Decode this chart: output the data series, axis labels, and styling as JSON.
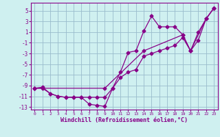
{
  "xlabel": "Windchill (Refroidissement éolien,°C)",
  "bg_color": "#cff0f0",
  "grid_color": "#99bbcc",
  "line_color": "#880088",
  "xlim": [
    -0.5,
    23.5
  ],
  "ylim": [
    -13.5,
    6.5
  ],
  "xticks": [
    0,
    1,
    2,
    3,
    4,
    5,
    6,
    7,
    8,
    9,
    10,
    11,
    12,
    13,
    14,
    15,
    16,
    17,
    18,
    19,
    20,
    21,
    22,
    23
  ],
  "yticks": [
    -13,
    -11,
    -9,
    -7,
    -5,
    -3,
    -1,
    1,
    3,
    5
  ],
  "line1_x": [
    0,
    1,
    2,
    3,
    4,
    5,
    6,
    7,
    8,
    9,
    10,
    11,
    12,
    13,
    14,
    15,
    16,
    17,
    18,
    19,
    20,
    21,
    22,
    23
  ],
  "line1_y": [
    -9.5,
    -9.5,
    -10.5,
    -11,
    -11.2,
    -11.2,
    -11.2,
    -12.5,
    -12.7,
    -12.9,
    -9.5,
    -6.5,
    -2.8,
    -2.5,
    1.2,
    4,
    2,
    2,
    2,
    0.5,
    -2.5,
    -0.5,
    3.5,
    5.5
  ],
  "line2_x": [
    0,
    1,
    2,
    3,
    4,
    5,
    6,
    7,
    8,
    9,
    10,
    11,
    12,
    13,
    14,
    15,
    16,
    17,
    18,
    19,
    20,
    21,
    22,
    23
  ],
  "line2_y": [
    -9.5,
    -9.3,
    -10.5,
    -11,
    -11.2,
    -11.2,
    -11.2,
    -11.2,
    -11.2,
    -11.2,
    -9.5,
    -7.5,
    -6.5,
    -6,
    -3.5,
    -3,
    -2.5,
    -2,
    -1.5,
    0,
    -2.5,
    1,
    3.5,
    5.5
  ],
  "line3_x": [
    0,
    9,
    14,
    19,
    20,
    22,
    23
  ],
  "line3_y": [
    -9.5,
    -9.5,
    -2.5,
    0.5,
    -2.5,
    3.5,
    5.5
  ]
}
